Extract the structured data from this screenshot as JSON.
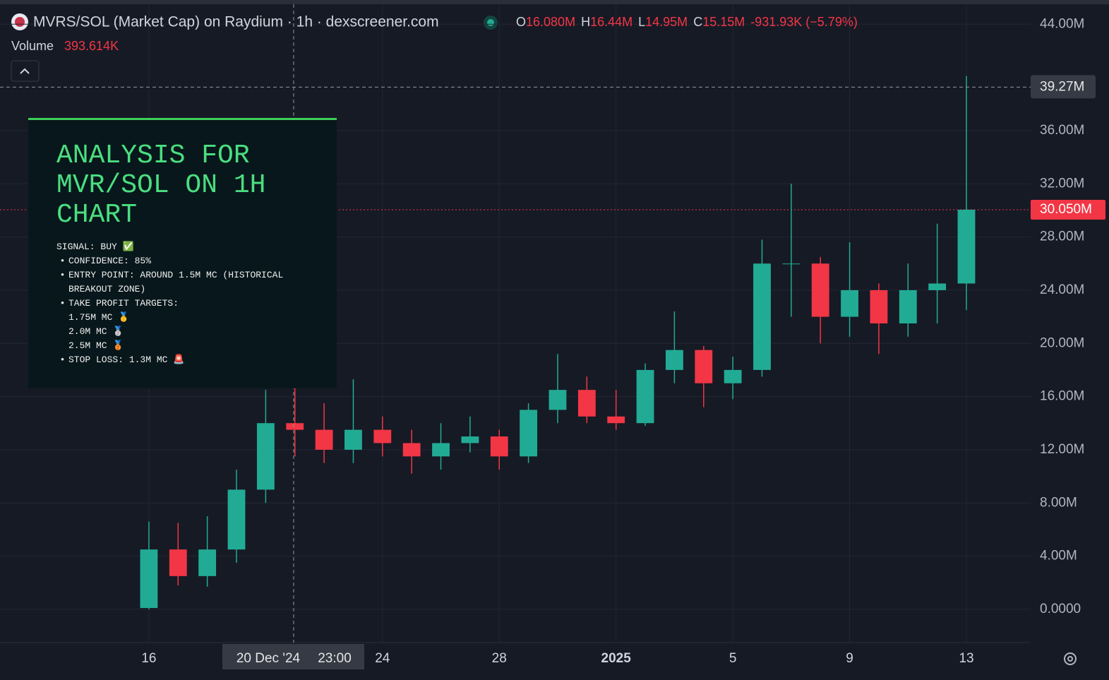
{
  "chart_data": {
    "type": "candlestick",
    "title": "MVRS/SOL (Market Cap) on Raydium · 1h · dexscreener.com",
    "ohlc_legend": [
      {
        "label": "O",
        "value": "16.080M"
      },
      {
        "label": "H",
        "value": "16.44M"
      },
      {
        "label": "L",
        "value": "14.95M"
      },
      {
        "label": "C",
        "value": "15.15M"
      }
    ],
    "change": "-931.93K (−5.79%)",
    "volume_label": "Volume",
    "volume_value": "393.614K",
    "x": [
      0,
      1,
      2,
      3,
      4,
      5,
      6,
      7,
      8,
      9,
      10,
      11,
      12,
      13,
      14,
      15,
      16,
      17,
      18,
      19,
      20,
      21,
      22,
      23,
      24,
      25,
      26,
      27,
      28
    ],
    "open": [
      0.1,
      4.5,
      2.5,
      4.5,
      9,
      14,
      13.5,
      12,
      13.5,
      12.5,
      11.5,
      12.5,
      13,
      11.5,
      15,
      16.5,
      14.5,
      14,
      18,
      19.5,
      17,
      18,
      26,
      26,
      22,
      24,
      21.5,
      24,
      24.5
    ],
    "high": [
      6.6,
      6.5,
      7,
      10.5,
      16.5,
      16.8,
      15.5,
      17.3,
      14.5,
      13.5,
      14,
      14.5,
      13.5,
      15.5,
      19.2,
      17.5,
      16.5,
      18.5,
      22.4,
      19.8,
      19,
      27.8,
      32,
      26.5,
      27.6,
      24.5,
      26,
      29,
      40.1
    ],
    "low": [
      0,
      1.8,
      1.7,
      3.5,
      8,
      11.5,
      11,
      11,
      11.5,
      10.2,
      10.5,
      11.8,
      10.5,
      11,
      14,
      14,
      13.5,
      13.8,
      17,
      15.2,
      15.8,
      17.5,
      22,
      20,
      20.5,
      19.2,
      20.5,
      21.5,
      22.5
    ],
    "close": [
      4.5,
      2.5,
      4.5,
      9,
      14,
      13.5,
      12,
      13.5,
      12.5,
      11.5,
      12.5,
      13,
      11.5,
      15,
      16.5,
      14.5,
      14,
      18,
      19.5,
      17,
      18,
      26,
      26,
      22,
      24,
      21.5,
      24,
      24.5,
      30.05
    ],
    "up_color": "#22ab94",
    "down_color": "#f23645",
    "xlim": [
      -5.1,
      30.2
    ],
    "xticks": [
      {
        "value": 0,
        "label": "16"
      },
      {
        "value": 8,
        "label": "24"
      },
      {
        "value": 12,
        "label": "28"
      },
      {
        "value": 16,
        "label": "2025"
      },
      {
        "value": 20,
        "label": "5"
      },
      {
        "value": 24,
        "label": "9"
      },
      {
        "value": 28,
        "label": "13"
      }
    ],
    "ylim": [
      -2.5,
      45.5
    ],
    "yticks": [
      {
        "value": 0,
        "label": "0.0000"
      },
      {
        "value": 4,
        "label": "4.00M"
      },
      {
        "value": 8,
        "label": "8.00M"
      },
      {
        "value": 12,
        "label": "12.00M"
      },
      {
        "value": 16,
        "label": "16.00M"
      },
      {
        "value": 20,
        "label": "20.00M"
      },
      {
        "value": 24,
        "label": "24.00M"
      },
      {
        "value": 28,
        "label": "28.00M"
      },
      {
        "value": 32,
        "label": "32.00M"
      },
      {
        "value": 36,
        "label": "36.00M"
      },
      {
        "value": 44,
        "label": "44.00M"
      }
    ],
    "grid": true,
    "crosshair": {
      "x": 4.958,
      "y": 39.27,
      "x_label": "20 Dec '24",
      "x_time": "23:00",
      "y_label": "39.27M"
    },
    "last_price": {
      "value": 30.05,
      "label": "30.050M"
    },
    "analysis": {
      "title": "ANALYSIS FOR MVR/SOL ON 1H CHART",
      "lines": [
        {
          "text": "SIGNAL: BUY ✅",
          "bullet": false,
          "indent": false
        },
        {
          "text": "CONFIDENCE: 85%",
          "bullet": true,
          "indent": false
        },
        {
          "text": "ENTRY POINT: AROUND 1.5M MC (HISTORICAL BREAKOUT ZONE)",
          "bullet": true,
          "indent": false
        },
        {
          "text": "TAKE PROFIT TARGETS:",
          "bullet": true,
          "indent": false
        },
        {
          "text": "1.75M MC 🥇",
          "bullet": false,
          "indent": true
        },
        {
          "text": "2.0M MC 🥈",
          "bullet": false,
          "indent": true
        },
        {
          "text": "2.5M MC 🥉",
          "bullet": false,
          "indent": true
        },
        {
          "text": "STOP LOSS: 1.3M MC 🚨",
          "bullet": true,
          "indent": false
        }
      ]
    }
  }
}
